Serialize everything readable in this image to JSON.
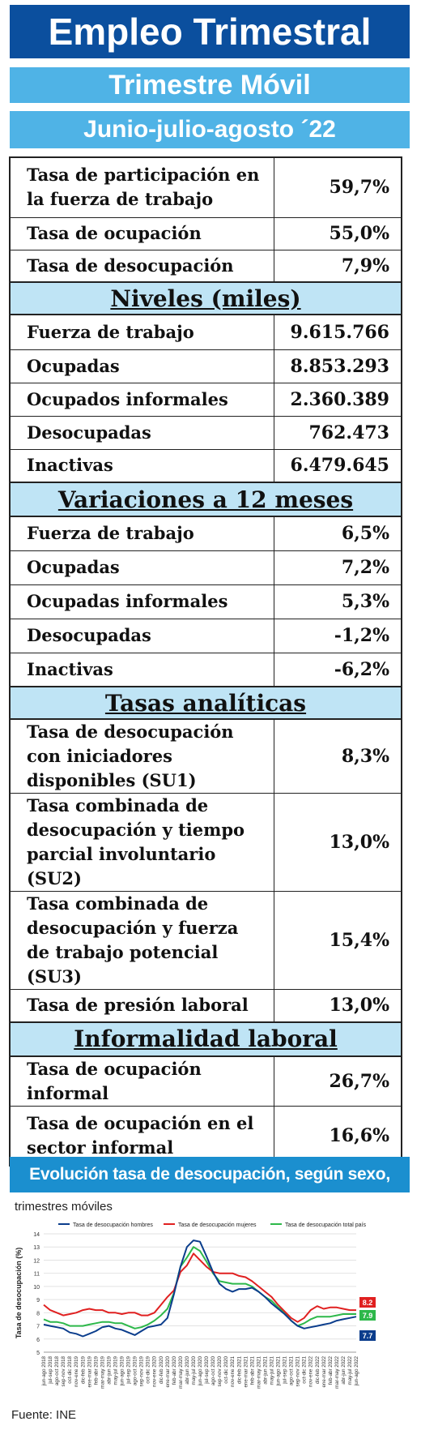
{
  "header": {
    "title": "Empleo Trimestral",
    "subtitle": "Trimestre Móvil",
    "period": "Junio-julio-agosto ´22"
  },
  "tasas_principales": [
    {
      "label": "Tasa de participación en la fuerza de trabajo",
      "value": "59,7%"
    },
    {
      "label": "Tasa de ocupación",
      "value": "55,0%"
    },
    {
      "label": "Tasa de desocupación",
      "value": "7,9%"
    }
  ],
  "niveles": {
    "heading": "Niveles  (miles)",
    "rows": [
      {
        "label": "Fuerza de trabajo",
        "value": "9.615.766"
      },
      {
        "label": "Ocupadas",
        "value": "8.853.293"
      },
      {
        "label": "Ocupados informales",
        "value": "2.360.389"
      },
      {
        "label": "Desocupadas",
        "value": "762.473"
      },
      {
        "label": "Inactivas",
        "value": "6.479.645"
      }
    ]
  },
  "variaciones": {
    "heading": "Variaciones a 12 meses",
    "rows": [
      {
        "label": "Fuerza de trabajo",
        "value": "6,5%"
      },
      {
        "label": "Ocupadas",
        "value": "7,2%"
      },
      {
        "label": "Ocupadas informales",
        "value": "5,3%"
      },
      {
        "label": "Desocupadas",
        "value": "-1,2%"
      },
      {
        "label": "Inactivas",
        "value": "-6,2%"
      }
    ]
  },
  "tasas_analiticas": {
    "heading": "Tasas  analíticas",
    "rows": [
      {
        "label": "Tasa de desocupación con iniciadores disponibles (SU1)",
        "value": "8,3%"
      },
      {
        "label": "Tasa combinada de desocupación y tiempo parcial involuntario (SU2)",
        "value": "13,0%"
      },
      {
        "label": "Tasa combinada de desocupación y fuerza de trabajo potencial (SU3)",
        "value": "15,4%"
      },
      {
        "label": "Tasa de presión laboral",
        "value": "13,0%"
      }
    ]
  },
  "informalidad": {
    "heading": "Informalidad  laboral",
    "rows": [
      {
        "label": "Tasa de ocupación informal",
        "value": "26,7%"
      },
      {
        "label": "Tasa de ocupación en el sector informal",
        "value": "16,6%"
      }
    ]
  },
  "chart_section": {
    "title": "Evolución tasa de desocupación, según sexo, total país",
    "subtitle": "trimestres móviles",
    "source": "Fuente: INE"
  },
  "chart_data": {
    "type": "line",
    "ylabel": "Tasa de desocupación (%)",
    "ylim": [
      5,
      14
    ],
    "yticks": [
      5,
      6,
      7,
      8,
      9,
      10,
      11,
      12,
      13,
      14
    ],
    "grid": true,
    "legend_position": "top",
    "categories": [
      "jun-ago 2018",
      "jul-sep 2018",
      "ago-oct 2018",
      "sep-nov 2018",
      "oct-dic 2018",
      "nov-ene 2019",
      "dic-feb 2019",
      "ene-mar 2019",
      "feb-abr 2019",
      "mar-may 2019",
      "abr-jun 2019",
      "may-jul 2019",
      "jun-ago 2019",
      "jul-sep 2019",
      "ago-oct 2019",
      "sep-nov 2019",
      "oct-dic 2019",
      "nov-ene 2020",
      "dic-feb 2020",
      "ene-mar 2020",
      "feb-abr 2020",
      "mar-may 2020",
      "abr-jun 2020",
      "may-jul 2020",
      "jun-ago 2020",
      "jul-sep 2020",
      "ago-oct 2020",
      "sep-nov 2020",
      "oct-dic 2020",
      "nov-ene 2021",
      "dic-feb 2021",
      "ene-mar 2021",
      "feb-abr 2021",
      "mar-may 2021",
      "abr-jun 2021",
      "may-jul 2021",
      "jun-ago 2021",
      "jul-sep 2021",
      "ago-oct 2021",
      "sep-nov 2021",
      "oct-dic 2021",
      "nov-ene 2022",
      "dic-feb 2022",
      "ene-mar 2022",
      "feb-abr 2022",
      "mar-may 2022",
      "abr-jun 2022",
      "may-jul 2022",
      "jun-ago 2022"
    ],
    "series": [
      {
        "name": "Tasa de desocupación hombres",
        "color": "#0b3d8c",
        "end_label": "7.7",
        "values": [
          7.1,
          7.0,
          6.9,
          6.8,
          6.5,
          6.4,
          6.2,
          6.4,
          6.6,
          6.9,
          7.0,
          6.8,
          6.7,
          6.5,
          6.3,
          6.6,
          6.9,
          7.0,
          7.1,
          7.6,
          9.4,
          11.5,
          13.0,
          13.5,
          13.4,
          12.3,
          11.1,
          10.2,
          9.8,
          9.6,
          9.8,
          9.8,
          9.9,
          9.6,
          9.2,
          8.7,
          8.3,
          7.9,
          7.4,
          7.0,
          6.8,
          6.9,
          7.0,
          7.1,
          7.2,
          7.4,
          7.5,
          7.6,
          7.7
        ]
      },
      {
        "name": "Tasa de desocupación mujeres",
        "color": "#e02020",
        "end_label": "8.2",
        "values": [
          8.6,
          8.2,
          8.0,
          7.8,
          7.9,
          8.0,
          8.2,
          8.3,
          8.2,
          8.2,
          8.0,
          8.0,
          7.9,
          8.0,
          8.0,
          7.8,
          7.8,
          8.0,
          8.6,
          9.2,
          9.7,
          11.1,
          11.6,
          12.5,
          12.0,
          11.5,
          11.1,
          11.0,
          11.0,
          11.0,
          10.8,
          10.7,
          10.4,
          10.0,
          9.6,
          9.2,
          8.6,
          8.1,
          7.6,
          7.3,
          7.6,
          8.2,
          8.5,
          8.3,
          8.4,
          8.4,
          8.3,
          8.2,
          8.2
        ]
      },
      {
        "name": "Tasa de desocupación total país",
        "color": "#2db84a",
        "end_label": "7.9",
        "values": [
          7.5,
          7.3,
          7.3,
          7.2,
          7.0,
          7.0,
          7.0,
          7.1,
          7.2,
          7.3,
          7.3,
          7.2,
          7.2,
          7.0,
          6.8,
          6.9,
          7.1,
          7.4,
          7.8,
          8.3,
          9.5,
          11.5,
          12.2,
          13.0,
          12.7,
          11.9,
          11.0,
          10.4,
          10.3,
          10.2,
          10.2,
          10.2,
          10.0,
          9.6,
          9.2,
          8.9,
          8.4,
          8.0,
          7.4,
          7.0,
          7.2,
          7.5,
          7.7,
          7.7,
          7.7,
          7.8,
          7.9,
          7.9,
          7.9
        ]
      }
    ]
  }
}
